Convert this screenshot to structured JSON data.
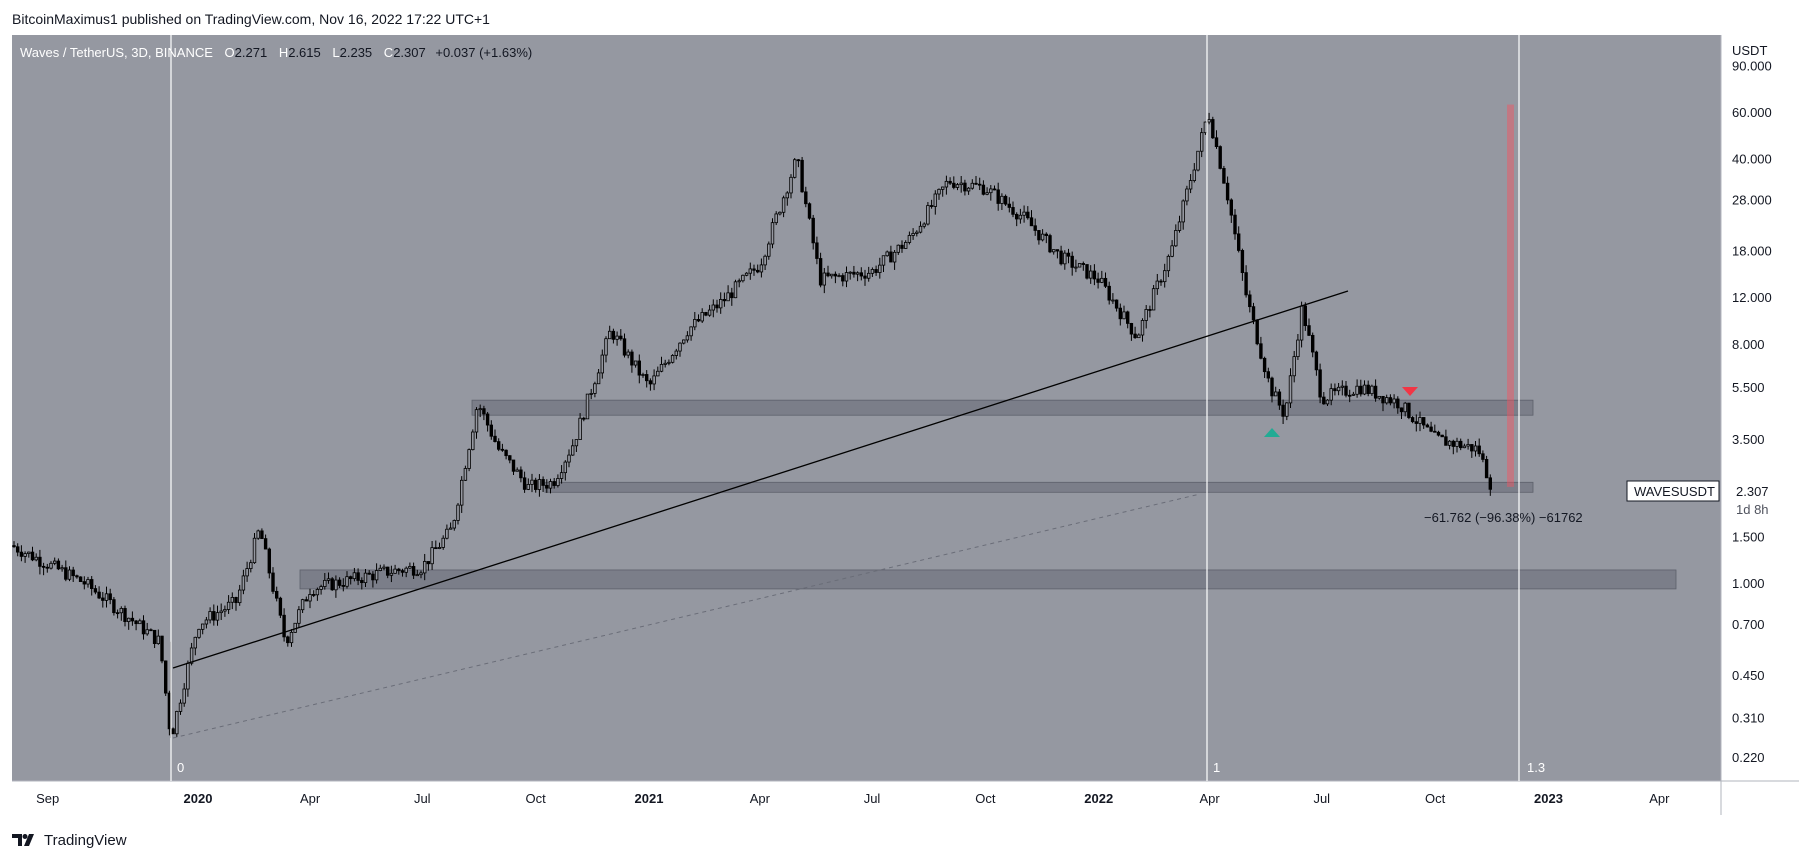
{
  "header": {
    "text": "BitcoinMaximus1 published on TradingView.com, Nov 16, 2022 17:22 UTC+1"
  },
  "legend": {
    "pair": "Waves / TetherUS, 3D, BINANCE",
    "o_key": "O",
    "o_val": "2.271",
    "h_key": "H",
    "h_val": "2.615",
    "l_key": "L",
    "l_val": "2.235",
    "c_key": "C",
    "c_val": "2.307",
    "change": "+0.037 (+1.63%)"
  },
  "chart_data": {
    "type": "candlestick",
    "symbol": "WAVESUSDT",
    "currency_label": "USDT",
    "y_scale": "log",
    "y_ticks": [
      "90.000",
      "60.000",
      "40.000",
      "28.000",
      "18.000",
      "12.000",
      "8.000",
      "5.500",
      "3.500",
      "1.500",
      "1.000",
      "0.700",
      "0.450",
      "0.310",
      "0.220"
    ],
    "x_ticks": [
      {
        "label": "Sep",
        "bold": false
      },
      {
        "label": "2020",
        "bold": true
      },
      {
        "label": "Apr",
        "bold": false
      },
      {
        "label": "Jul",
        "bold": false
      },
      {
        "label": "Oct",
        "bold": false
      },
      {
        "label": "2021",
        "bold": true
      },
      {
        "label": "Apr",
        "bold": false
      },
      {
        "label": "Jul",
        "bold": false
      },
      {
        "label": "Oct",
        "bold": false
      },
      {
        "label": "2022",
        "bold": true
      },
      {
        "label": "Apr",
        "bold": false
      },
      {
        "label": "Jul",
        "bold": false
      },
      {
        "label": "Oct",
        "bold": false
      },
      {
        "label": "2023",
        "bold": true
      },
      {
        "label": "Apr",
        "bold": false
      }
    ],
    "price_path": [
      {
        "date": "2019-08",
        "price": 1.4
      },
      {
        "date": "2019-10",
        "price": 1.0
      },
      {
        "date": "2019-12",
        "price": 0.6
      },
      {
        "date": "2019-12-10",
        "price": 0.26
      },
      {
        "date": "2020-01",
        "price": 0.7
      },
      {
        "date": "2020-02",
        "price": 0.85
      },
      {
        "date": "2020-02-20",
        "price": 1.6
      },
      {
        "date": "2020-03",
        "price": 1.0
      },
      {
        "date": "2020-03-12",
        "price": 0.6
      },
      {
        "date": "2020-04",
        "price": 0.95
      },
      {
        "date": "2020-06",
        "price": 1.1
      },
      {
        "date": "2020-07",
        "price": 1.15
      },
      {
        "date": "2020-07-25",
        "price": 1.6
      },
      {
        "date": "2020-08-15",
        "price": 4.8
      },
      {
        "date": "2020-09",
        "price": 3.2
      },
      {
        "date": "2020-09-25",
        "price": 2.3
      },
      {
        "date": "2020-10-15",
        "price": 2.4
      },
      {
        "date": "2020-11",
        "price": 3.4
      },
      {
        "date": "2020-12",
        "price": 9.0
      },
      {
        "date": "2021-01",
        "price": 5.5
      },
      {
        "date": "2021-02",
        "price": 9.0
      },
      {
        "date": "2021-03",
        "price": 11.5
      },
      {
        "date": "2021-04",
        "price": 16.0
      },
      {
        "date": "2021-05",
        "price": 40.0
      },
      {
        "date": "2021-05-20",
        "price": 14.0
      },
      {
        "date": "2021-07",
        "price": 15.0
      },
      {
        "date": "2021-08",
        "price": 20.0
      },
      {
        "date": "2021-09",
        "price": 33.0
      },
      {
        "date": "2021-10",
        "price": 31.0
      },
      {
        "date": "2021-11",
        "price": 24.0
      },
      {
        "date": "2021-12",
        "price": 17.0
      },
      {
        "date": "2022-01",
        "price": 14.0
      },
      {
        "date": "2022-02",
        "price": 8.5
      },
      {
        "date": "2022-03",
        "price": 18.0
      },
      {
        "date": "2022-03-31",
        "price": 60.0
      },
      {
        "date": "2022-04-15",
        "price": 30.0
      },
      {
        "date": "2022-05",
        "price": 12.0
      },
      {
        "date": "2022-05-20",
        "price": 5.5
      },
      {
        "date": "2022-06",
        "price": 4.3
      },
      {
        "date": "2022-06-15",
        "price": 11.0
      },
      {
        "date": "2022-07",
        "price": 5.0
      },
      {
        "date": "2022-08",
        "price": 5.5
      },
      {
        "date": "2022-09",
        "price": 4.8
      },
      {
        "date": "2022-10",
        "price": 3.5
      },
      {
        "date": "2022-11-05",
        "price": 3.2
      },
      {
        "date": "2022-11-16",
        "price": 2.307
      }
    ],
    "fib_labels": [
      "0",
      "1",
      "1.3"
    ],
    "support_zones": [
      {
        "low": 4.3,
        "high": 4.9
      },
      {
        "low": 2.2,
        "high": 2.4
      },
      {
        "low": 0.95,
        "high": 1.12
      }
    ],
    "last_price": "2.307",
    "countdown": "1d 8h",
    "measure_text": "−61.762 (−96.38%) −61762",
    "colors": {
      "background": "#9598a1",
      "candle": "#000000",
      "zone": "#787b86",
      "arrow_up": "#22ab94",
      "arrow_down": "#f23645",
      "measure": "#f7525f"
    }
  },
  "footer": {
    "brand": "TradingView"
  }
}
